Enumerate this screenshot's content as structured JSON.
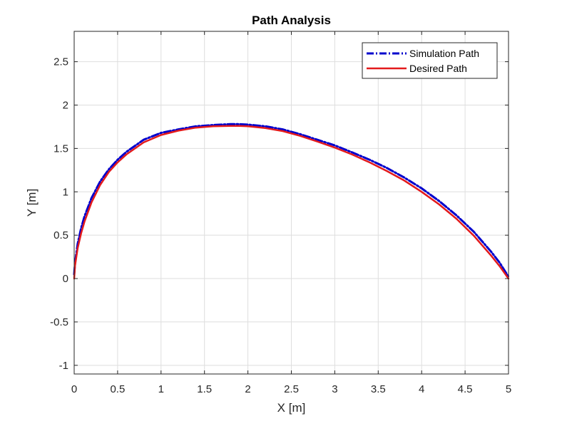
{
  "chart_data": {
    "type": "line",
    "title": "Path Analysis",
    "xlabel": "X [m]",
    "ylabel": "Y [m]",
    "xlim": [
      0,
      5
    ],
    "ylim": [
      -1.1,
      2.85
    ],
    "xticks": [
      0,
      0.5,
      1,
      1.5,
      2,
      2.5,
      3,
      3.5,
      4,
      4.5,
      5
    ],
    "xtick_labels": [
      "0",
      "0.5",
      "1",
      "1.5",
      "2",
      "2.5",
      "3",
      "3.5",
      "4",
      "4.5",
      "5"
    ],
    "yticks": [
      -1,
      -0.5,
      0,
      0.5,
      1,
      1.5,
      2,
      2.5
    ],
    "ytick_labels": [
      "-1",
      "-0.5",
      "0",
      "0.5",
      "1",
      "1.5",
      "2",
      "2.5"
    ],
    "grid": true,
    "legend_position": "top-right",
    "series": [
      {
        "name": "Simulation Path",
        "color": "#0000cc",
        "style": "dash-dot",
        "x": [
          0,
          0.01,
          0.04,
          0.08,
          0.12,
          0.2,
          0.3,
          0.4,
          0.5,
          0.6,
          0.8,
          1.0,
          1.2,
          1.4,
          1.6,
          1.8,
          1.9,
          2.0,
          2.2,
          2.4,
          2.6,
          2.8,
          3.0,
          3.2,
          3.4,
          3.6,
          3.8,
          4.0,
          4.2,
          4.4,
          4.6,
          4.8,
          4.9,
          5.0
        ],
        "y": [
          0.05,
          0.18,
          0.4,
          0.58,
          0.72,
          0.93,
          1.12,
          1.26,
          1.37,
          1.46,
          1.6,
          1.68,
          1.72,
          1.755,
          1.77,
          1.78,
          1.78,
          1.775,
          1.755,
          1.72,
          1.665,
          1.6,
          1.535,
          1.455,
          1.37,
          1.275,
          1.165,
          1.04,
          0.895,
          0.73,
          0.54,
          0.31,
          0.18,
          0.02
        ]
      },
      {
        "name": "Desired Path",
        "color": "#e31a1c",
        "style": "solid",
        "x": [
          0,
          0.01,
          0.04,
          0.08,
          0.12,
          0.2,
          0.3,
          0.4,
          0.5,
          0.6,
          0.8,
          1.0,
          1.2,
          1.4,
          1.6,
          1.8,
          1.9,
          2.0,
          2.2,
          2.4,
          2.6,
          2.8,
          3.0,
          3.2,
          3.4,
          3.6,
          3.8,
          4.0,
          4.2,
          4.4,
          4.6,
          4.8,
          4.9,
          5.0
        ],
        "y": [
          0,
          0.15,
          0.35,
          0.52,
          0.66,
          0.88,
          1.08,
          1.23,
          1.34,
          1.43,
          1.57,
          1.655,
          1.705,
          1.74,
          1.755,
          1.76,
          1.76,
          1.755,
          1.735,
          1.7,
          1.645,
          1.58,
          1.51,
          1.43,
          1.34,
          1.24,
          1.13,
          1.0,
          0.855,
          0.69,
          0.495,
          0.265,
          0.14,
          0
        ]
      }
    ]
  }
}
